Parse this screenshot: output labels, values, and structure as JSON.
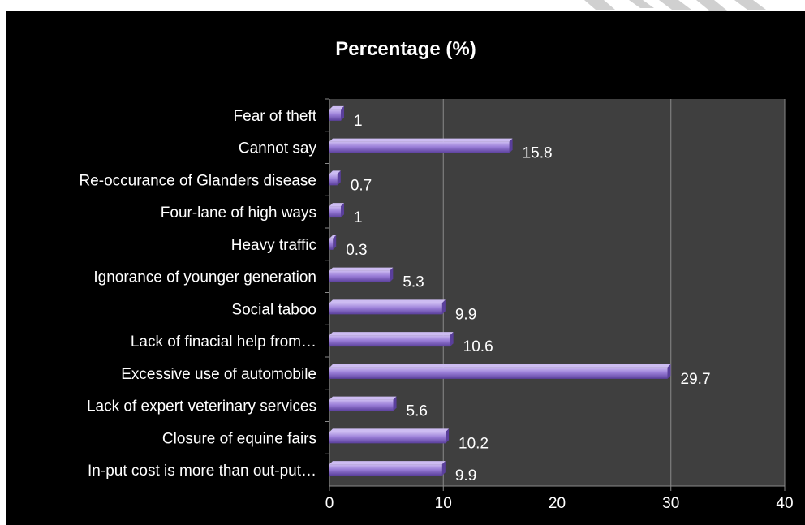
{
  "chart_data": {
    "type": "bar",
    "orientation": "horizontal",
    "title": "Percentage (%)",
    "categories": [
      "Fear of theft",
      "Cannot say",
      "Re-occurance of Glanders disease",
      "Four-lane of high ways",
      "Heavy traffic",
      "Ignorance of younger generation",
      "Social taboo",
      "Lack of  finacial help from…",
      "Excessive use of automobile",
      "Lack of  expert veterinary services",
      "Closure of equine fairs",
      "In-put cost is more than out-put…"
    ],
    "values": [
      1,
      15.8,
      0.7,
      1,
      0.3,
      5.3,
      9.9,
      10.6,
      29.7,
      5.6,
      10.2,
      9.9
    ],
    "value_labels": [
      "1",
      "15.8",
      "0.7",
      "1",
      "0.3",
      "5.3",
      "9.9",
      "10.6",
      "29.7",
      "5.6",
      "10.2",
      "9.9"
    ],
    "xlim": [
      0,
      40
    ],
    "xticks": [
      0,
      10,
      20,
      30,
      40
    ],
    "xtick_labels": [
      "0",
      "10",
      "20",
      "30",
      "40"
    ],
    "grid": true,
    "background": "#000000",
    "plot_background": "#3f3f3f",
    "bar_color": "#9b7fd8",
    "bar_highlight": "#cdbcf2",
    "bar_shadow": "#5a3f9c",
    "text_color": "#ffffff"
  }
}
